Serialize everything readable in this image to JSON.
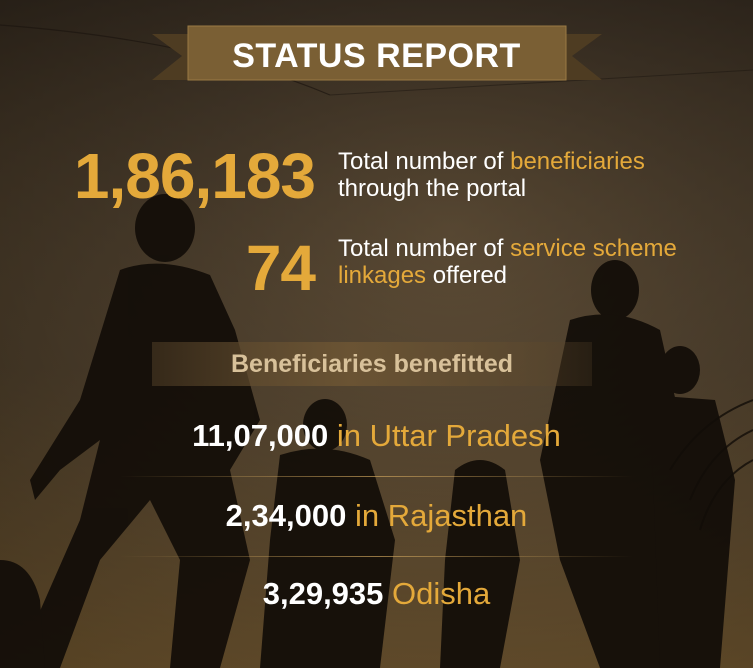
{
  "title": "STATUS REPORT",
  "stats": [
    {
      "value": "1,86,183",
      "text_before": "Total number of ",
      "highlight": "beneficiaries",
      "text_after": "through the portal"
    },
    {
      "value": "74",
      "text_before": "Total number of ",
      "highlight": "service scheme linkages",
      "text_after": " offered"
    }
  ],
  "beneficiaries_heading": "Beneficiaries benefitted",
  "states": [
    {
      "number": "11,07,000",
      "label": "in Uttar Pradesh"
    },
    {
      "number": "2,34,000",
      "label": "in Rajasthan"
    },
    {
      "number": "3,29,935",
      "label": "Odisha"
    }
  ],
  "colors": {
    "accent": "#e4a93a",
    "banner": "#6b5430",
    "text": "#ffffff"
  }
}
